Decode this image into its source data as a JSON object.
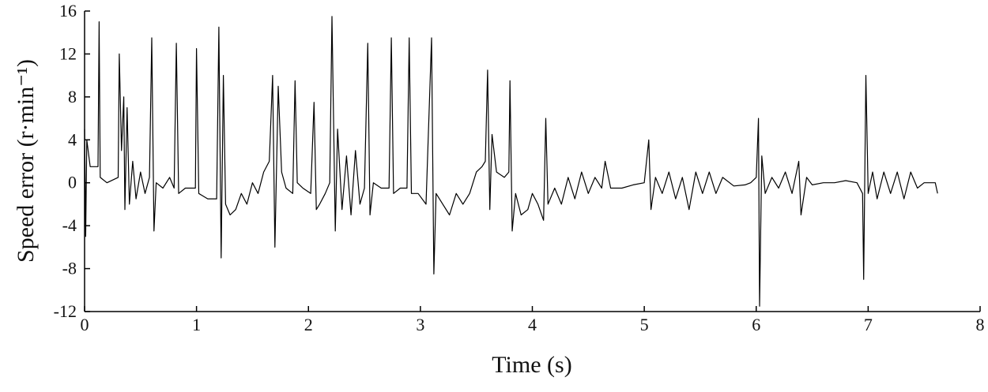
{
  "chart_data": {
    "type": "line",
    "xlabel": "Time (s)",
    "ylabel": "Speed error (r·min⁻¹)",
    "color": "#000000",
    "x": [
      0,
      0.01,
      0.02,
      0.05,
      0.12,
      0.13,
      0.14,
      0.2,
      0.3,
      0.31,
      0.33,
      0.35,
      0.36,
      0.38,
      0.4,
      0.43,
      0.46,
      0.5,
      0.54,
      0.58,
      0.6,
      0.62,
      0.64,
      0.7,
      0.76,
      0.8,
      0.82,
      0.84,
      0.9,
      0.96,
      0.99,
      1.0,
      1.02,
      1.1,
      1.18,
      1.2,
      1.22,
      1.24,
      1.26,
      1.3,
      1.35,
      1.4,
      1.45,
      1.5,
      1.55,
      1.6,
      1.65,
      1.68,
      1.7,
      1.73,
      1.76,
      1.8,
      1.86,
      1.88,
      1.9,
      1.95,
      2.02,
      2.05,
      2.07,
      2.1,
      2.15,
      2.19,
      2.21,
      2.24,
      2.26,
      2.3,
      2.34,
      2.38,
      2.42,
      2.46,
      2.5,
      2.53,
      2.55,
      2.58,
      2.65,
      2.72,
      2.74,
      2.76,
      2.82,
      2.88,
      2.9,
      2.92,
      2.98,
      3.05,
      3.1,
      3.12,
      3.14,
      3.2,
      3.26,
      3.32,
      3.38,
      3.44,
      3.5,
      3.55,
      3.58,
      3.6,
      3.62,
      3.64,
      3.68,
      3.75,
      3.79,
      3.8,
      3.82,
      3.85,
      3.9,
      3.96,
      4.0,
      4.05,
      4.1,
      4.12,
      4.14,
      4.2,
      4.26,
      4.32,
      4.38,
      4.44,
      4.5,
      4.56,
      4.62,
      4.65,
      4.7,
      4.8,
      4.9,
      5.0,
      5.04,
      5.06,
      5.1,
      5.16,
      5.22,
      5.28,
      5.34,
      5.4,
      5.46,
      5.52,
      5.58,
      5.64,
      5.7,
      5.8,
      5.9,
      5.95,
      6.0,
      6.02,
      6.03,
      6.05,
      6.08,
      6.14,
      6.2,
      6.26,
      6.32,
      6.38,
      6.4,
      6.45,
      6.5,
      6.6,
      6.7,
      6.8,
      6.9,
      6.95,
      6.96,
      6.98,
      7.0,
      7.04,
      7.08,
      7.14,
      7.2,
      7.26,
      7.32,
      7.38,
      7.44,
      7.5,
      7.55,
      7.6,
      7.62
    ],
    "values": [
      5,
      -5,
      4,
      1.5,
      1.5,
      15,
      0.5,
      0,
      0.5,
      12,
      3,
      8,
      -2.5,
      7,
      -2,
      2,
      -1.5,
      1,
      -1,
      0.5,
      13.5,
      -4.5,
      0,
      -0.5,
      0.5,
      -0.5,
      13,
      -1,
      -0.5,
      -0.5,
      -0.5,
      12.5,
      -1,
      -1.5,
      -1.5,
      14.5,
      -7,
      10,
      -2,
      -3,
      -2.5,
      -1,
      -2,
      0,
      -1,
      1,
      2,
      10,
      -6,
      9,
      1,
      -0.5,
      -1,
      9.5,
      0,
      -0.5,
      -1,
      7.5,
      -2.5,
      -2,
      -1,
      0,
      15.5,
      -4.5,
      5,
      -2.5,
      2.5,
      -3,
      3,
      -2,
      -0.5,
      13,
      -3,
      0,
      -0.5,
      -0.5,
      13.5,
      -1,
      -0.5,
      -0.5,
      13.5,
      -1,
      -1,
      -2,
      13.5,
      -8.5,
      -1,
      -2,
      -3,
      -1,
      -2,
      -1,
      1,
      1.5,
      2,
      10.5,
      -2.5,
      4.5,
      1,
      0.5,
      1,
      9.5,
      -4.5,
      -1,
      -3,
      -2.5,
      -1,
      -2,
      -3.5,
      6,
      -2,
      -0.5,
      -2,
      0.5,
      -1.5,
      1,
      -1,
      0.5,
      -0.5,
      2,
      -0.5,
      -0.5,
      -0.2,
      0,
      4,
      -2.5,
      0.5,
      -1,
      1,
      -1.5,
      0.5,
      -2.5,
      1,
      -1,
      1,
      -1,
      0.5,
      -0.3,
      -0.2,
      0,
      0.5,
      6,
      -11.5,
      2.5,
      -1,
      0.5,
      -0.5,
      1,
      -1,
      2,
      -3,
      0.5,
      -0.2,
      0,
      0,
      0.2,
      0,
      -1,
      -9,
      10,
      -1,
      1,
      -1.5,
      1,
      -1,
      1,
      -1.5,
      1,
      -0.5,
      0,
      0,
      0,
      -1
    ],
    "xlim": [
      0,
      8
    ],
    "xticks": [
      0,
      1,
      2,
      3,
      4,
      5,
      6,
      7,
      8
    ],
    "ylim": [
      -12,
      16
    ],
    "yticks": [
      -12,
      -8,
      -4,
      0,
      4,
      8,
      12,
      16
    ]
  }
}
